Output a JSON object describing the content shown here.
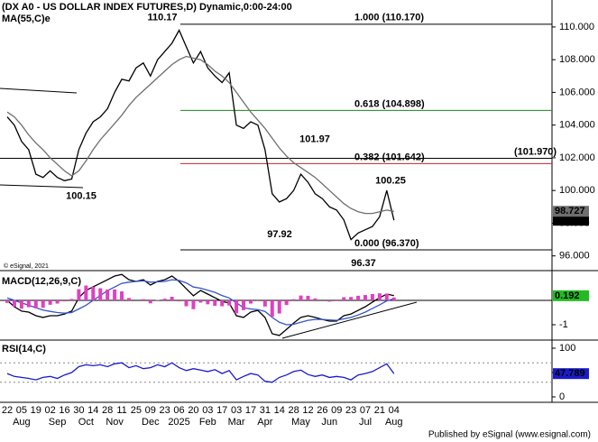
{
  "chart_data": [
    {
      "type": "line",
      "title": "(DX A0 - US DOLLAR INDEX FUTURES,D) Dynamic,0:00-24:00",
      "subtitle": "MA(55,C)e",
      "source": "© eSignal, 2021",
      "categories": [
        "22",
        null,
        "05",
        null,
        "19",
        null,
        "02",
        null,
        "16",
        null,
        "30",
        null,
        "14",
        null,
        "28",
        null,
        "11",
        null,
        "25",
        null,
        "09",
        null,
        "23",
        null,
        "06",
        null,
        "20",
        null,
        "03",
        null,
        "17",
        null,
        "03",
        null,
        "17",
        null,
        "31",
        null,
        "14",
        null,
        "28",
        null,
        "12",
        null,
        "26",
        null,
        "09",
        null,
        "23",
        null,
        "07",
        null,
        "21",
        null,
        "04"
      ],
      "months": [
        null,
        null,
        "Aug",
        null,
        null,
        null,
        null,
        "Sep",
        null,
        null,
        null,
        "Oct",
        null,
        null,
        null,
        "Nov",
        null,
        null,
        null,
        null,
        "Dec",
        null,
        null,
        null,
        "2025",
        null,
        null,
        null,
        "Feb",
        null,
        null,
        null,
        "Mar",
        null,
        null,
        null,
        "Apr",
        null,
        null,
        null,
        null,
        "May",
        null,
        null,
        null,
        "Jun",
        null,
        null,
        null,
        null,
        "Jul",
        null,
        null,
        null,
        "Aug"
      ],
      "series": [
        {
          "color": "#000000",
          "values": [
            104.5,
            104.0,
            103.0,
            102.5,
            101.0,
            100.8,
            101.2,
            100.8,
            100.6,
            100.7,
            102.5,
            103.5,
            104.2,
            104.5,
            105.0,
            106.0,
            106.8,
            106.7,
            107.5,
            107.8,
            107.0,
            108.0,
            108.5,
            109.0,
            109.8,
            108.8,
            107.8,
            108.5,
            107.5,
            107.0,
            106.6,
            107.2,
            104.0,
            103.8,
            104.2,
            104.0,
            102.5,
            99.8,
            99.3,
            99.5,
            100.0,
            101.0,
            100.5,
            99.8,
            99.5,
            99.0,
            98.8,
            98.2,
            97.0,
            97.4,
            97.6,
            97.8,
            98.4,
            100.0,
            98.18
          ],
          "last_label": "98.180"
        },
        {
          "color": "#6e6e6e",
          "values": [
            104.8,
            104.5,
            104.0,
            103.4,
            102.9,
            102.5,
            102.0,
            101.6,
            101.2,
            100.9,
            101.2,
            101.8,
            102.5,
            103.1,
            103.6,
            104.1,
            104.6,
            105.2,
            105.7,
            106.1,
            106.5,
            106.9,
            107.3,
            107.7,
            108.0,
            108.2,
            108.1,
            108.0,
            107.7,
            107.3,
            107.0,
            106.6,
            106.0,
            105.4,
            104.8,
            104.3,
            103.8,
            103.2,
            102.6,
            102.1,
            101.7,
            101.4,
            101.1,
            100.8,
            100.4,
            100.0,
            99.6,
            99.2,
            98.9,
            98.7,
            98.6,
            98.6,
            98.7,
            98.8,
            98.727
          ],
          "last_label": "98.727"
        }
      ],
      "ylim": [
        95.1,
        111.65
      ],
      "yticks": [
        {
          "value": 96,
          "label": "96.000"
        },
        {
          "value": 98,
          "label": "98.000"
        },
        {
          "value": 100,
          "label": "100.000"
        },
        {
          "value": 102,
          "label": "102.000"
        },
        {
          "value": 104,
          "label": "104.000"
        },
        {
          "value": 106,
          "label": "106.000"
        },
        {
          "value": 108,
          "label": "108.000"
        },
        {
          "value": 110,
          "label": "110.000"
        }
      ],
      "levels": [
        {
          "label": "1.000 (110.170)",
          "value": 110.17,
          "color": "#000000"
        },
        {
          "label": "0.618 (104.898)",
          "value": 104.898,
          "color": "#1a8a1a"
        },
        {
          "label": "0.382 (101.642)",
          "value": 101.642,
          "color": "#cc2222"
        },
        {
          "label": "0.000 (96.370)",
          "value": 96.37,
          "color": "#000000"
        }
      ],
      "hline": {
        "label": "(101.970)",
        "value": 101.97
      },
      "annotations": [
        {
          "label": "110.17",
          "value": 110.17
        },
        {
          "label": "100.15",
          "value": 100.15
        },
        {
          "label": "101.97",
          "value": 101.97
        },
        {
          "label": "97.92",
          "value": 97.92
        },
        {
          "label": "100.25",
          "value": 100.25
        },
        {
          "label": "96.37",
          "value": 96.37
        }
      ]
    },
    {
      "type": "line",
      "title": "MACD(12,26,9,C)",
      "series": [
        {
          "color": "#000000",
          "values": [
            0.0,
            -0.26,
            -0.44,
            -0.48,
            -0.63,
            -0.7,
            -0.63,
            -0.63,
            -0.56,
            -0.44,
            0.11,
            0.41,
            0.56,
            0.7,
            0.85,
            1.0,
            1.07,
            0.85,
            0.78,
            0.85,
            0.63,
            0.78,
            0.85,
            1.0,
            0.78,
            0.48,
            0.19,
            0.41,
            0.26,
            0.11,
            -0.04,
            -0.11,
            -0.63,
            -0.7,
            -0.48,
            -0.41,
            -0.7,
            -1.37,
            -1.44,
            -1.19,
            -0.93,
            -0.7,
            -0.63,
            -0.7,
            -0.78,
            -0.85,
            -0.85,
            -0.63,
            -0.56,
            -0.41,
            -0.26,
            -0.07,
            0.11,
            0.26,
            0.192
          ],
          "last_label": "0.192",
          "label_color": "#22bb22"
        },
        {
          "color": "#3355cc",
          "values": [
            0.1,
            0.0,
            -0.1,
            -0.2,
            -0.3,
            -0.4,
            -0.45,
            -0.5,
            -0.52,
            -0.5,
            -0.35,
            -0.2,
            0.0,
            0.2,
            0.4,
            0.55,
            0.7,
            0.75,
            0.78,
            0.8,
            0.75,
            0.76,
            0.78,
            0.85,
            0.82,
            0.72,
            0.55,
            0.5,
            0.42,
            0.33,
            0.2,
            0.1,
            -0.1,
            -0.3,
            -0.35,
            -0.38,
            -0.45,
            -0.7,
            -0.9,
            -1.0,
            -0.98,
            -0.9,
            -0.82,
            -0.78,
            -0.78,
            -0.8,
            -0.82,
            -0.76,
            -0.7,
            -0.6,
            -0.48,
            -0.33,
            -0.18,
            -0.02,
            0.07
          ]
        },
        {
          "color": "#e040c0",
          "histogram": true,
          "values": [
            -0.1,
            -0.26,
            -0.34,
            -0.28,
            -0.33,
            -0.3,
            -0.18,
            -0.13,
            -0.04,
            0.06,
            0.46,
            0.61,
            0.56,
            0.5,
            0.45,
            0.45,
            0.37,
            0.1,
            0.0,
            0.05,
            -0.12,
            0.02,
            0.07,
            0.15,
            -0.04,
            -0.24,
            -0.36,
            -0.09,
            -0.16,
            -0.22,
            -0.24,
            -0.21,
            -0.53,
            -0.4,
            -0.13,
            -0.03,
            -0.25,
            -0.67,
            -0.54,
            -0.19,
            0.05,
            0.2,
            0.19,
            0.08,
            0.0,
            -0.05,
            -0.03,
            0.13,
            0.14,
            0.19,
            0.22,
            0.26,
            0.29,
            0.28,
            0.12
          ]
        }
      ],
      "ylim": [
        -1.63,
        1.15
      ],
      "yticks": [
        -1
      ],
      "zero_line": 0
    },
    {
      "type": "line",
      "title": "RSI(14,C)",
      "series": [
        {
          "color": "#1a1acc",
          "values": [
            48,
            42,
            40,
            38,
            35,
            40,
            42,
            38,
            45,
            50,
            62,
            66,
            64,
            66,
            62,
            68,
            70,
            60,
            64,
            58,
            60,
            66,
            62,
            70,
            60,
            54,
            58,
            55,
            52,
            56,
            48,
            54,
            35,
            42,
            48,
            45,
            32,
            30,
            40,
            45,
            52,
            55,
            46,
            42,
            45,
            40,
            42,
            40,
            35,
            45,
            48,
            52,
            60,
            68,
            47.789
          ],
          "last_label": "47.789",
          "label_color": "#1a1acc"
        }
      ],
      "ylim": [
        -11.1,
        114.8
      ],
      "yticks": [
        0,
        50,
        100
      ],
      "guides": [
        30,
        70
      ]
    }
  ],
  "footer": "Published by eSignal (www.esignal.com)"
}
